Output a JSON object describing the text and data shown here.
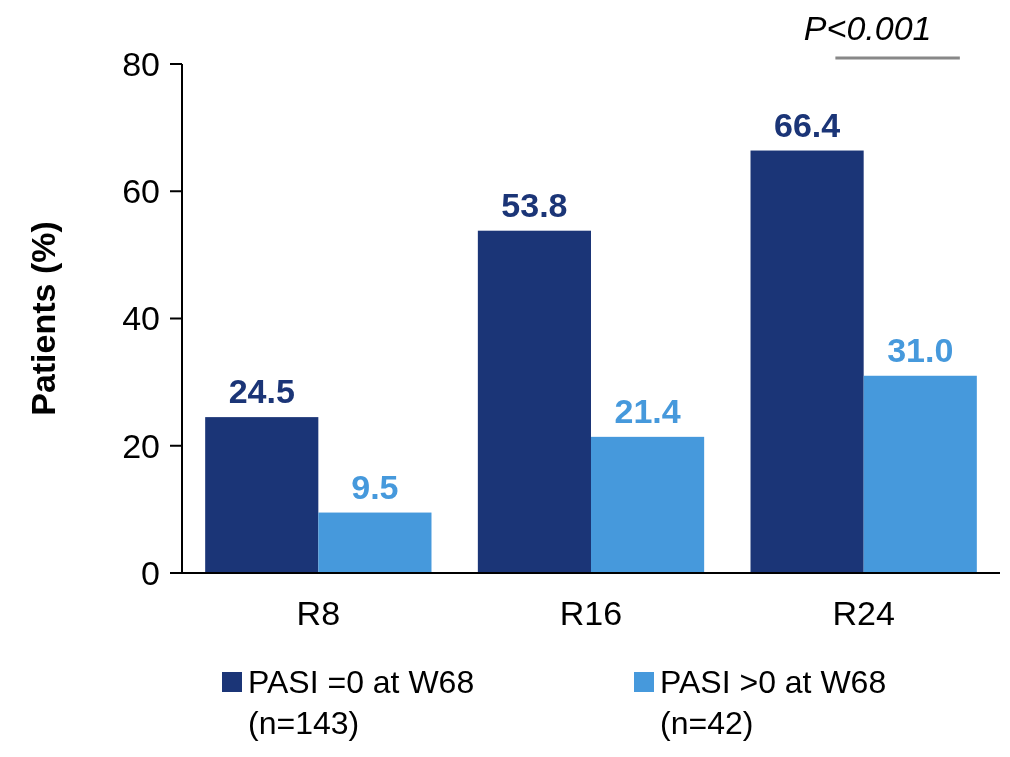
{
  "chart_data": {
    "type": "bar",
    "ylabel": "Patients (%)",
    "categories": [
      "R8",
      "R16",
      "R24"
    ],
    "series": [
      {
        "name": "PASI =0 at W68\n(n=143)",
        "color": "#1b3577",
        "values": [
          24.5,
          53.8,
          66.4
        ],
        "value_labels": [
          "24.5",
          "53.8",
          "66.4"
        ]
      },
      {
        "name": "PASI >0 at W68\n(n=42)",
        "color": "#4699dc",
        "values": [
          9.5,
          21.4,
          31.0
        ],
        "value_labels": [
          "9.5",
          "21.4",
          "31.0"
        ]
      }
    ],
    "ylim": [
      0,
      80
    ],
    "yticks": [
      0,
      20,
      40,
      60,
      80
    ],
    "grid": false,
    "legend": "bottom",
    "annotations": [
      "P<0.001"
    ]
  }
}
